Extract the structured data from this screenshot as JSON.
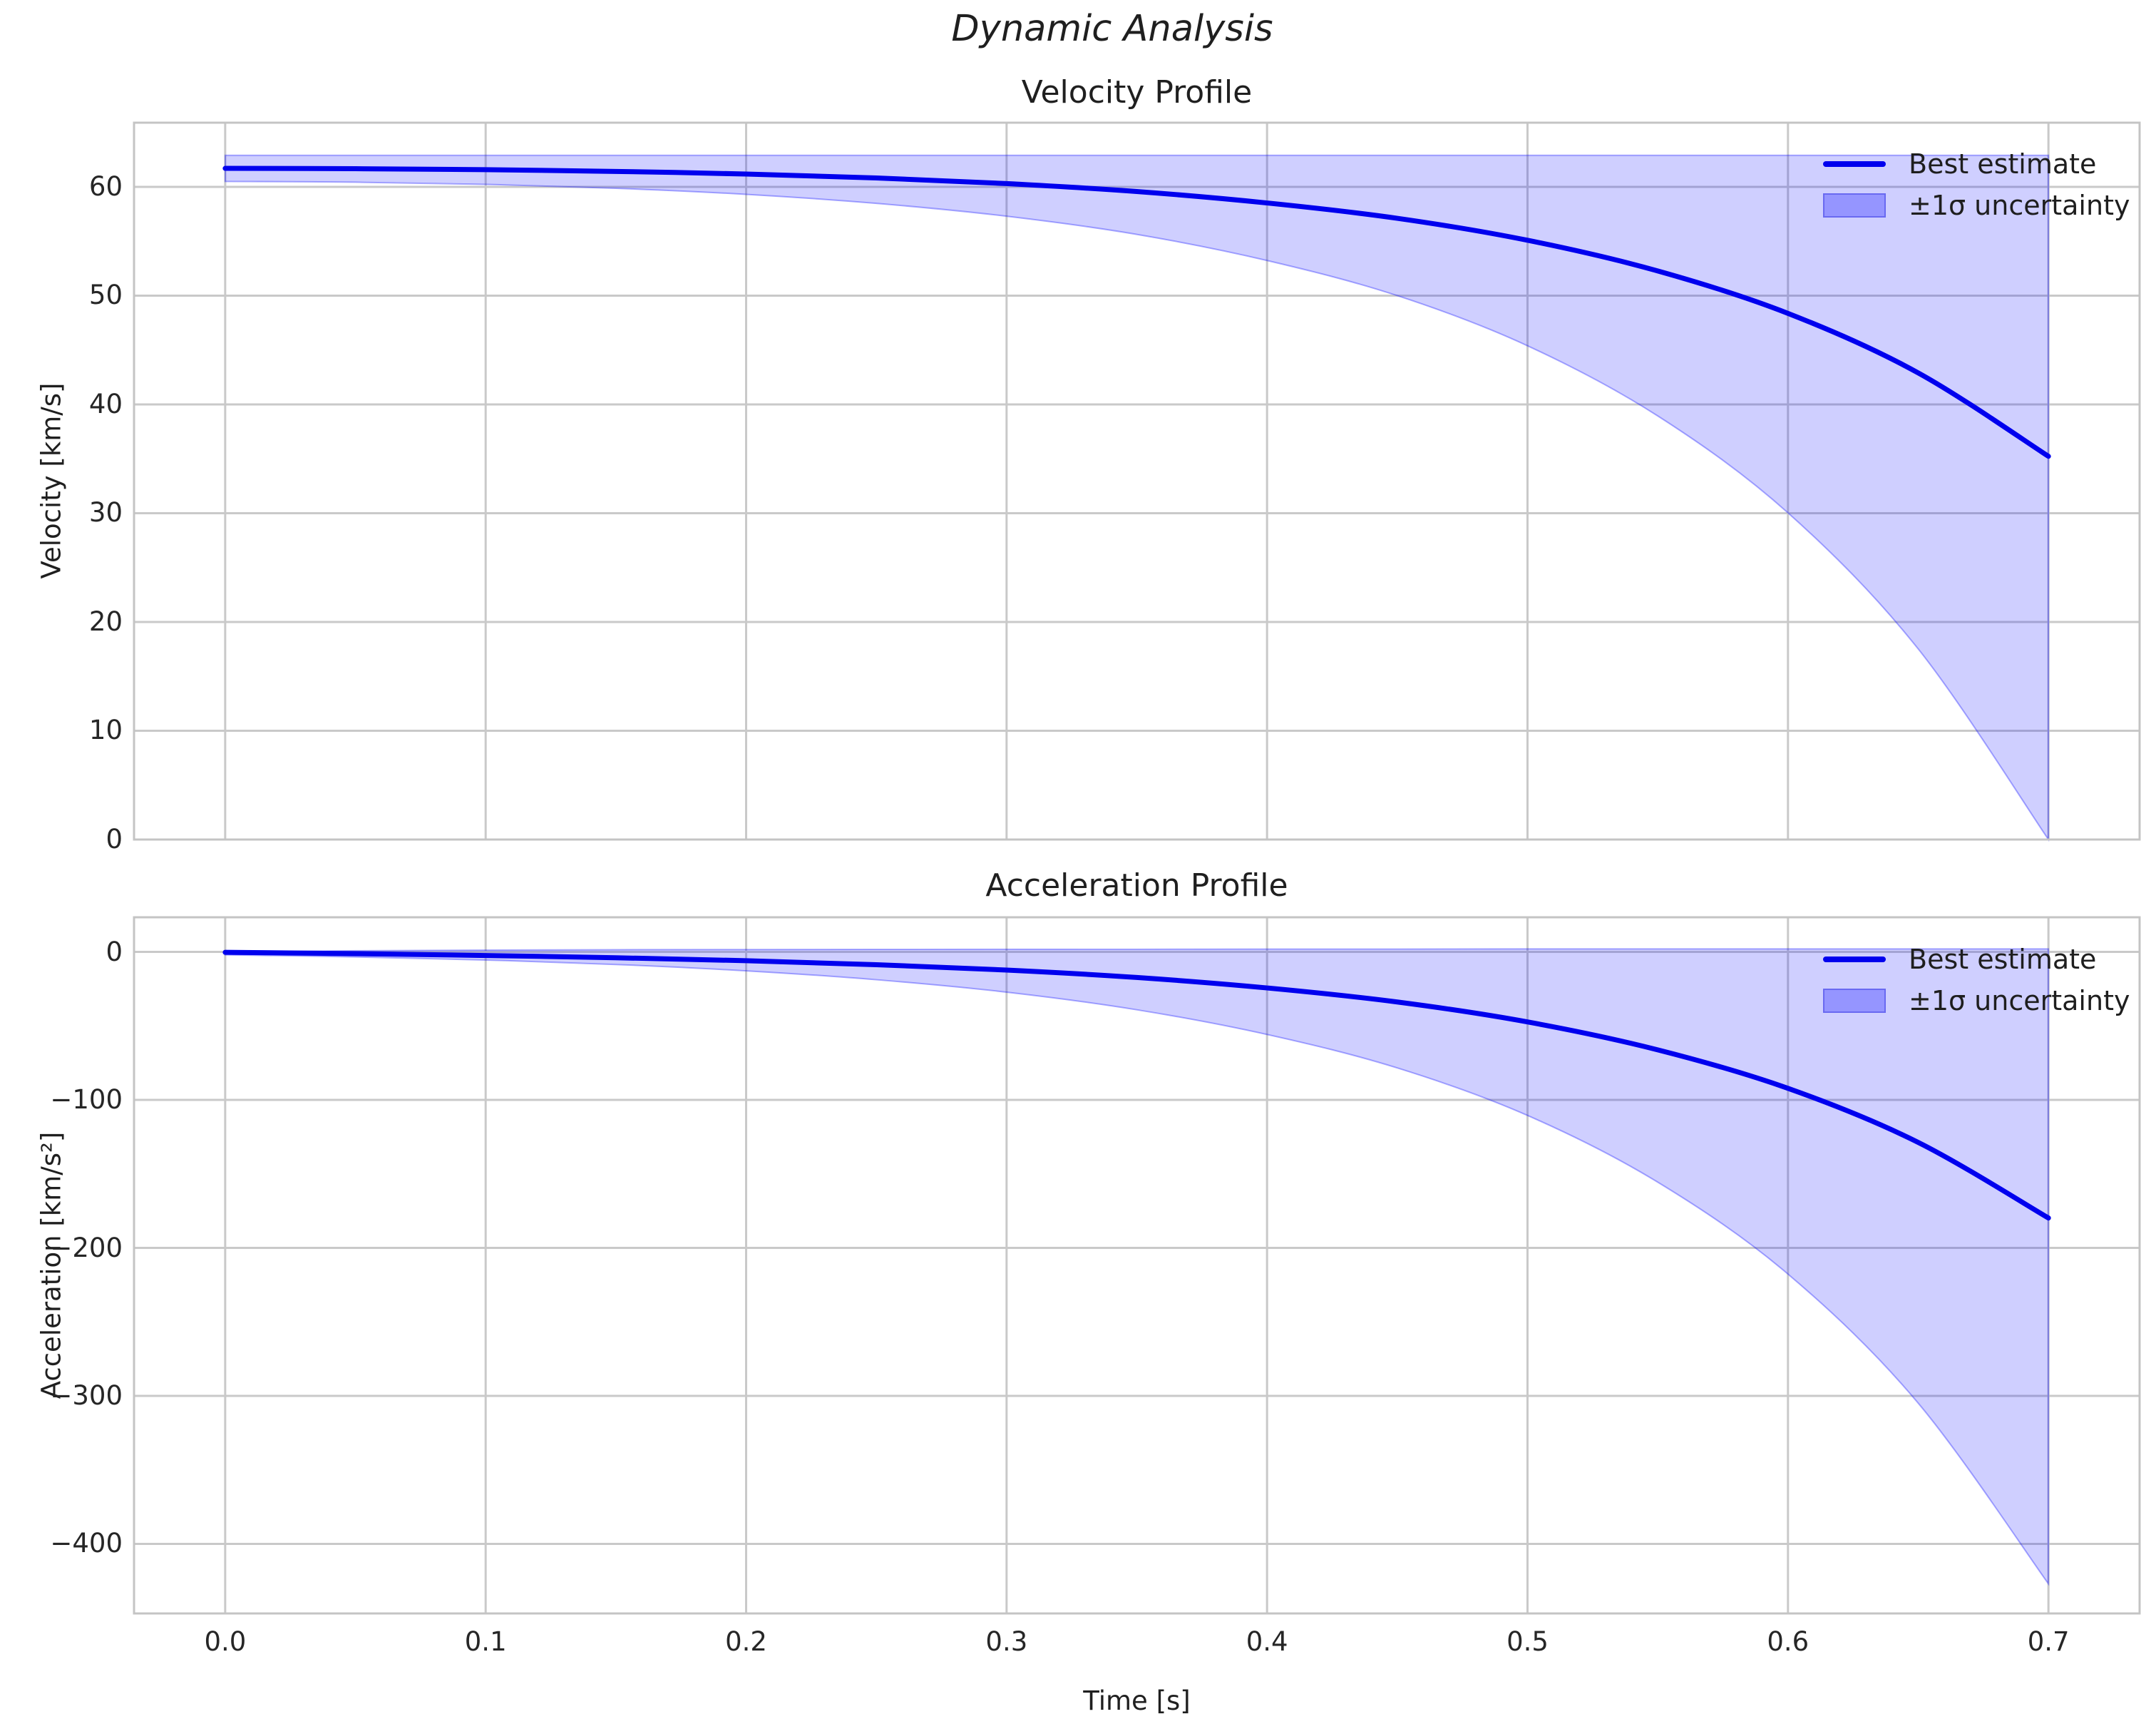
{
  "suptitle": "Dynamic Analysis",
  "xlabel": "Time [s]",
  "style": {
    "line_color": "#0000ee",
    "band_color": "#0000ff",
    "band_fill_alpha": 0.19,
    "band_edge_alpha": 0.32,
    "grid_color": "#c9c9c9",
    "frame_color": "#c4c4c4",
    "text_color": "#1f1f1f",
    "background": "#ffffff"
  },
  "legend": {
    "line_label": "Best estimate",
    "band_label": "±1σ uncertainty",
    "position": "upper right"
  },
  "chart_data": [
    {
      "type": "line",
      "title": "Velocity Profile",
      "ylabel": "Velocity [km/s]",
      "xlabel": "",
      "grid": true,
      "x": [
        0.0,
        0.05,
        0.1,
        0.15,
        0.2,
        0.25,
        0.3,
        0.35,
        0.4,
        0.45,
        0.5,
        0.55,
        0.6,
        0.65,
        0.7
      ],
      "series": [
        {
          "name": "Best estimate",
          "values": [
            61.7,
            61.67,
            61.58,
            61.42,
            61.18,
            60.82,
            60.3,
            59.57,
            58.52,
            57.11,
            55.09,
            52.27,
            48.37,
            42.9,
            35.23
          ]
        },
        {
          "name": "+1σ upper bound",
          "values": [
            62.9,
            62.9,
            62.9,
            62.9,
            62.9,
            62.9,
            62.9,
            62.9,
            62.9,
            62.9,
            62.9,
            62.9,
            62.9,
            62.9,
            62.9
          ]
        },
        {
          "name": "−1σ lower bound",
          "values": [
            60.5,
            60.43,
            60.23,
            59.87,
            59.31,
            58.48,
            57.3,
            55.63,
            53.23,
            50.0,
            45.39,
            38.94,
            30.03,
            17.52,
            0.0
          ]
        }
      ],
      "xlim": [
        -0.035,
        0.735
      ],
      "ylim": [
        0,
        65.9
      ],
      "xticks": {
        "values": [
          0.0,
          0.1,
          0.2,
          0.3,
          0.4,
          0.5,
          0.6,
          0.7
        ],
        "labels": [
          "0.0",
          "0.1",
          "0.2",
          "0.3",
          "0.4",
          "0.5",
          "0.6",
          "0.7"
        ],
        "show_labels": false
      },
      "yticks": {
        "values": [
          0,
          10,
          20,
          30,
          40,
          50,
          60
        ],
        "labels": [
          "0",
          "10",
          "20",
          "30",
          "40",
          "50",
          "60"
        ]
      }
    },
    {
      "type": "line",
      "title": "Acceleration Profile",
      "ylabel": "Acceleration [km/s²]",
      "xlabel": "Time [s]",
      "grid": true,
      "x": [
        0.0,
        0.05,
        0.1,
        0.15,
        0.2,
        0.25,
        0.3,
        0.35,
        0.4,
        0.45,
        0.5,
        0.55,
        0.6,
        0.65,
        0.7
      ],
      "series": [
        {
          "name": "Best estimate",
          "values": [
            -0.3,
            -1.15,
            -2.42,
            -3.97,
            -5.94,
            -8.63,
            -12.25,
            -17.28,
            -24.34,
            -33.84,
            -47.31,
            -66.18,
            -92.19,
            -128.7,
            -179.78
          ]
        },
        {
          "name": "+1σ upper bound",
          "values": [
            0.0,
            0.8,
            1.2,
            1.5,
            1.6,
            1.7,
            1.8,
            1.8,
            1.9,
            1.9,
            2.0,
            2.0,
            2.0,
            2.0,
            2.0
          ]
        },
        {
          "name": "−1σ lower bound",
          "values": [
            -2.0,
            -3.4,
            -5.5,
            -8.5,
            -12.8,
            -18.8,
            -27.2,
            -39.1,
            -55.8,
            -78.4,
            -110.5,
            -155.6,
            -217.7,
            -304.9,
            -427.0
          ]
        }
      ],
      "xlim": [
        -0.035,
        0.735
      ],
      "ylim": [
        -447,
        23.4
      ],
      "xticks": {
        "values": [
          0.0,
          0.1,
          0.2,
          0.3,
          0.4,
          0.5,
          0.6,
          0.7
        ],
        "labels": [
          "0.0",
          "0.1",
          "0.2",
          "0.3",
          "0.4",
          "0.5",
          "0.6",
          "0.7"
        ],
        "show_labels": true
      },
      "yticks": {
        "values": [
          0,
          -100,
          -200,
          -300,
          -400
        ],
        "labels": [
          "0",
          "−100",
          "−200",
          "−300",
          "−400"
        ]
      }
    }
  ]
}
